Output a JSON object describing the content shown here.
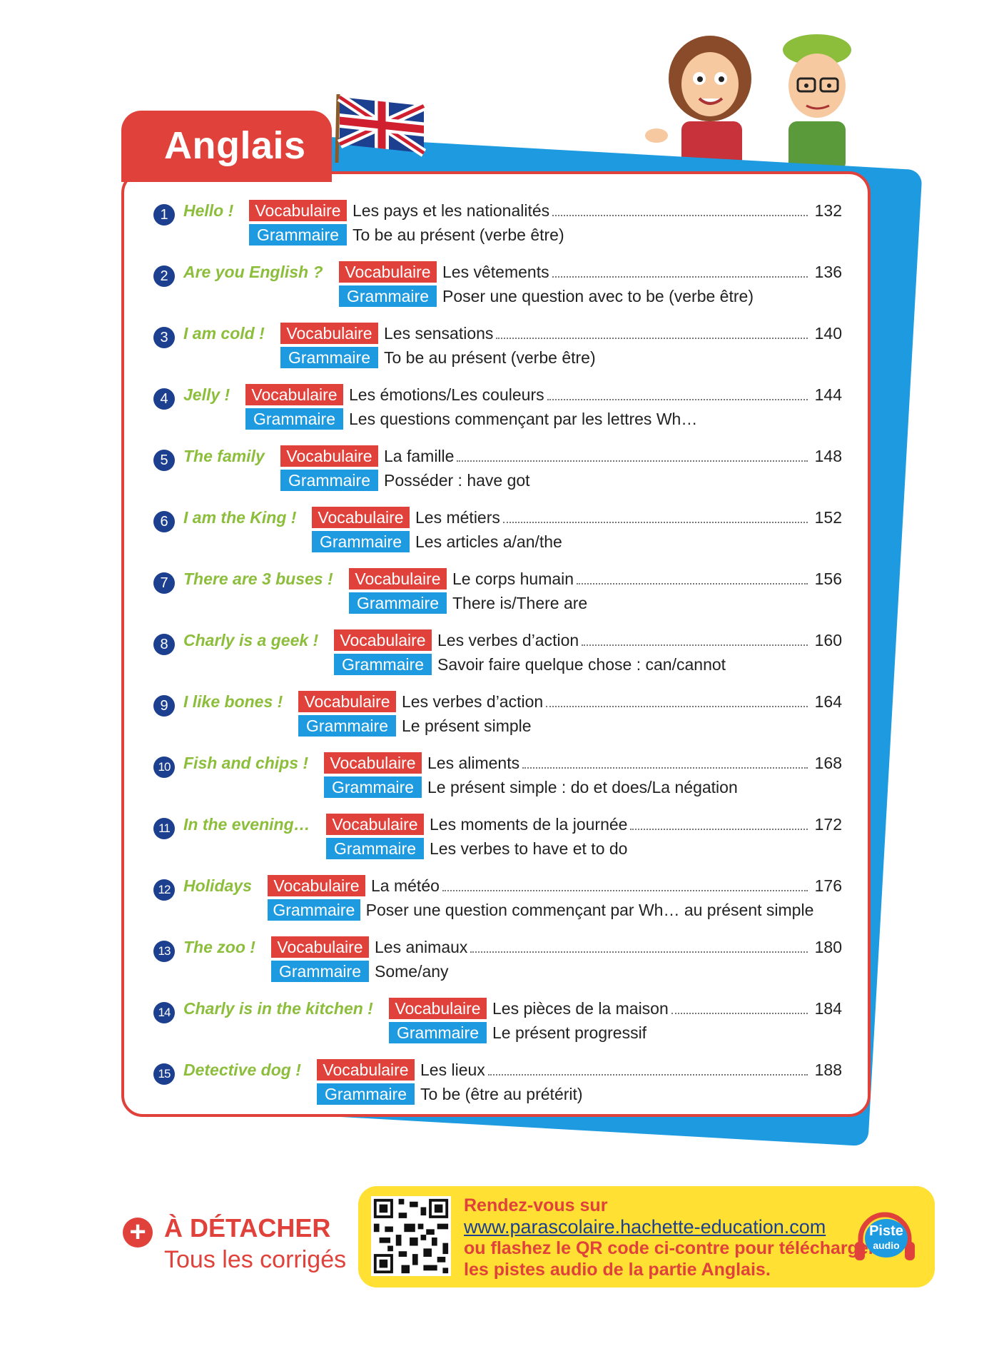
{
  "header": {
    "title": "Anglais"
  },
  "labels": {
    "vocab": "Vocabulaire",
    "gram": "Grammaire"
  },
  "entries": [
    {
      "n": "1",
      "title": "Hello !",
      "vocab": "Les pays et les nationalités",
      "page": "132",
      "grammar": "To be au présent (verbe être)"
    },
    {
      "n": "2",
      "title": "Are you English ?",
      "vocab": "Les vêtements",
      "page": "136",
      "grammar": "Poser une question avec to be (verbe être)"
    },
    {
      "n": "3",
      "title": "I am cold !",
      "vocab": "Les sensations",
      "page": "140",
      "grammar": "To be au présent (verbe être)"
    },
    {
      "n": "4",
      "title": "Jelly !",
      "vocab": "Les émotions/Les couleurs",
      "page": "144",
      "grammar": "Les questions commençant par les lettres Wh…"
    },
    {
      "n": "5",
      "title": "The family",
      "vocab": "La famille",
      "page": "148",
      "grammar": "Posséder : have got"
    },
    {
      "n": "6",
      "title": "I am the King !",
      "vocab": "Les métiers",
      "page": "152",
      "grammar": "Les articles a/an/the"
    },
    {
      "n": "7",
      "title": "There are 3 buses !",
      "vocab": "Le corps humain",
      "page": "156",
      "grammar": "There is/There are"
    },
    {
      "n": "8",
      "title": "Charly is a geek !",
      "vocab": "Les verbes d’action",
      "page": "160",
      "grammar": "Savoir faire quelque chose : can/cannot"
    },
    {
      "n": "9",
      "title": "I like bones !",
      "vocab": "Les verbes d’action",
      "page": "164",
      "grammar": "Le présent simple"
    },
    {
      "n": "10",
      "title": "Fish and chips !",
      "vocab": "Les aliments",
      "page": "168",
      "grammar": "Le présent simple : do et does/La négation"
    },
    {
      "n": "11",
      "title": "In the evening…",
      "vocab": "Les moments de la journée",
      "page": "172",
      "grammar": "Les verbes to have et to do"
    },
    {
      "n": "12",
      "title": "Holidays",
      "vocab": "La météo",
      "page": "176",
      "grammar": "Poser une question commençant par Wh… au présent simple"
    },
    {
      "n": "13",
      "title": "The zoo !",
      "vocab": "Les animaux",
      "page": "180",
      "grammar": "Some/any"
    },
    {
      "n": "14",
      "title": "Charly is in the kitchen !",
      "vocab": "Les pièces de la maison",
      "page": "184",
      "grammar": "Le présent progressif"
    },
    {
      "n": "15",
      "title": "Detective dog !",
      "vocab": "Les lieux",
      "page": "188",
      "grammar": "To be (être au prétérit)"
    }
  ],
  "detach": {
    "line1": "À DÉTACHER",
    "line2": "Tous les corrigés"
  },
  "audio": {
    "line1": "Rendez-vous sur",
    "url": "www.parascolaire.hachette-education.com",
    "line3": "ou flashez le QR code ci-contre pour télécharger",
    "line4": "les pistes audio de la partie Anglais.",
    "badge1": "Piste",
    "badge2": "audio"
  },
  "colors": {
    "red": "#e0413a",
    "blue": "#1e9be0",
    "green": "#8cbe3c",
    "navy": "#1c3f8f",
    "yellow": "#ffe033"
  }
}
